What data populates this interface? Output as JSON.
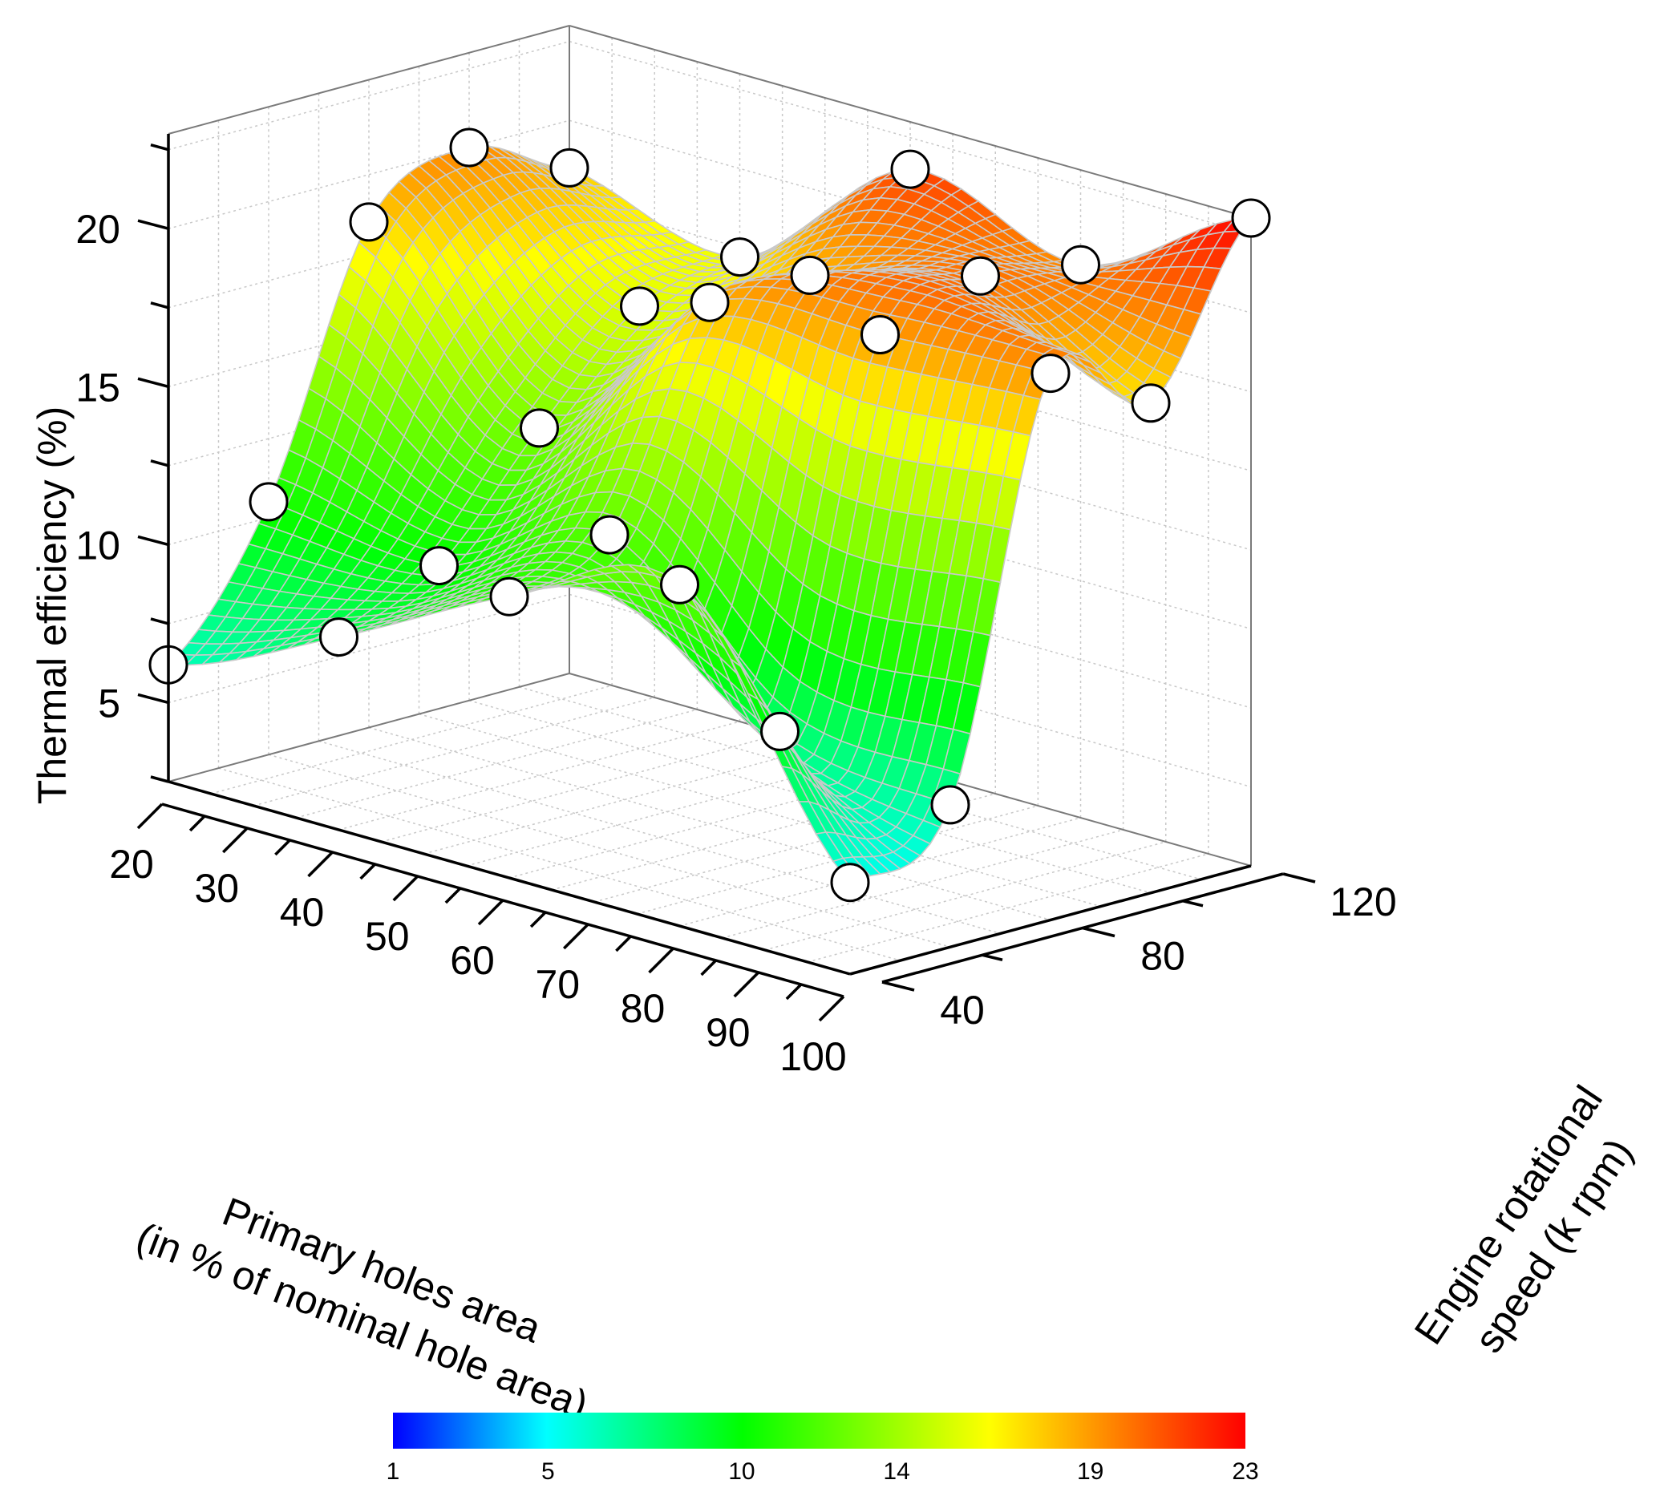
{
  "chart_data": {
    "type": "surface3d",
    "title": "",
    "xlabel": [
      "Primary holes area",
      "(in % of nominal hole area)"
    ],
    "ylabel": [
      "Engine rotational",
      "speed (k rpm)"
    ],
    "zlabel": "Thermal efficiency (%)",
    "x_ticks": [
      20,
      30,
      40,
      50,
      60,
      70,
      80,
      90,
      100
    ],
    "y_ticks": [
      40,
      80,
      120
    ],
    "z_ticks": [
      5,
      10,
      15,
      20
    ],
    "xlim": [
      20,
      100
    ],
    "ylim": [
      40,
      120
    ],
    "zlim": [
      2.5,
      23
    ],
    "x_levels": [
      20,
      40,
      60,
      80,
      100
    ],
    "y_levels": [
      40,
      60,
      80,
      100,
      120
    ],
    "z_grid": [
      [
        6.2,
        8.6,
        11.4,
        13.3,
        5.4
      ],
      [
        10.5,
        10.0,
        12.5,
        7.8,
        7.0
      ],
      [
        18.5,
        13.5,
        19.0,
        19.5,
        19.8
      ],
      [
        20.0,
        16.5,
        19.0,
        20.5,
        18.0
      ],
      [
        18.5,
        17.2,
        21.5,
        20.0,
        23.0
      ]
    ],
    "colorbar": {
      "ticks": [
        "1",
        "5",
        "10",
        "14",
        "19",
        "23"
      ],
      "min": 1,
      "max": 23,
      "colors": [
        "#0000ff",
        "#00ffff",
        "#00ff00",
        "#ffff00",
        "#ff0000"
      ]
    }
  }
}
